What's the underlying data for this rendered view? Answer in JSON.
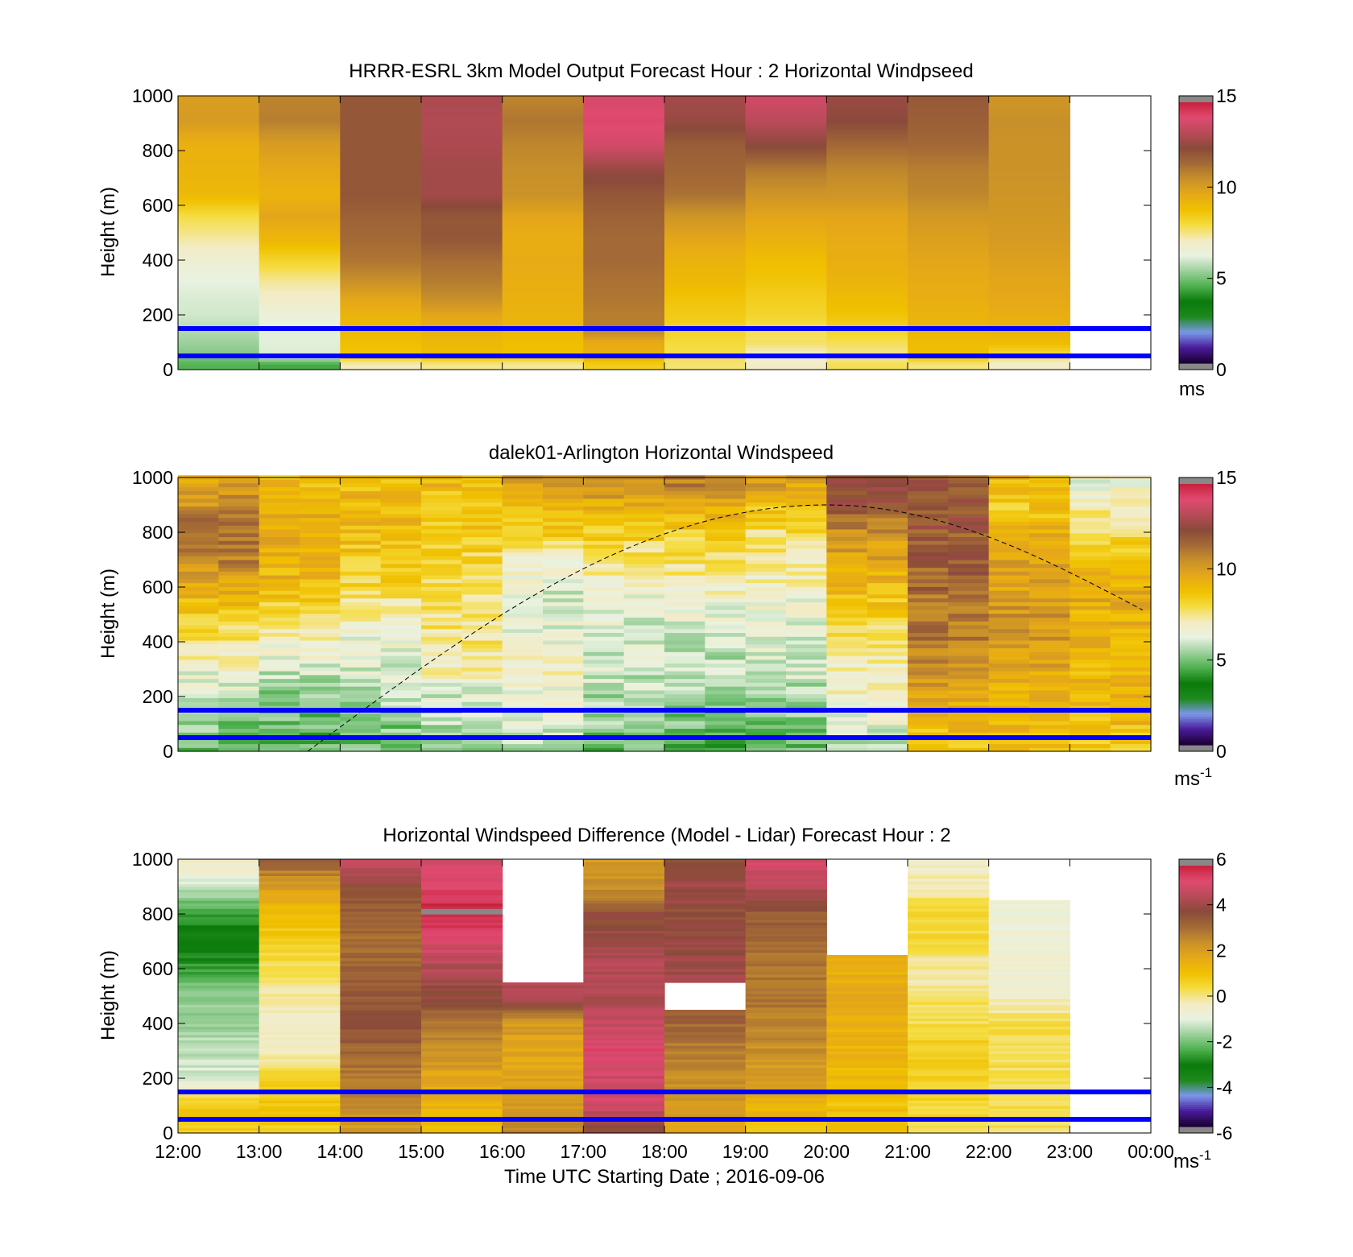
{
  "figure": {
    "xlabel": "Time UTC  Starting Date ; 2016-09-06",
    "x_tick_labels": [
      "12:00",
      "13:00",
      "14:00",
      "15:00",
      "16:00",
      "17:00",
      "18:00",
      "19:00",
      "20:00",
      "21:00",
      "22:00",
      "23:00",
      "00:00"
    ]
  },
  "chart_data": [
    {
      "type": "heatmap",
      "title": "HRRR-ESRL 3km Model Output   Forecast Hour : 2 Horizontal Windpseed",
      "ylabel": "Height (m)",
      "ylim": [
        0,
        1000
      ],
      "y_ticks": [
        "0",
        "200",
        "400",
        "600",
        "800",
        "1000"
      ],
      "x_hours": [
        12,
        13,
        14,
        15,
        16,
        17,
        18,
        19,
        20,
        21,
        22,
        23
      ],
      "heights_m": [
        20,
        50,
        100,
        150,
        200,
        260,
        330,
        400,
        480,
        560,
        640,
        730,
        820,
        910,
        980
      ],
      "values": [
        [
          4.5,
          5.0,
          5.3,
          5.6,
          5.9,
          6.0,
          6.2,
          6.6,
          7.3,
          7.9,
          9.1,
          9.3,
          9.4,
          10.2,
          10.1
        ],
        [
          4.3,
          6.0,
          6.1,
          6.1,
          6.4,
          6.9,
          7.4,
          8.2,
          9.2,
          9.8,
          9.3,
          9.7,
          10.1,
          11.0,
          10.9
        ],
        [
          7.1,
          8.6,
          8.9,
          9.1,
          9.3,
          9.8,
          10.6,
          11.2,
          11.5,
          11.7,
          12.0,
          12.0,
          12.0,
          12.0,
          12.0
        ],
        [
          7.4,
          9.0,
          9.1,
          9.4,
          9.8,
          10.6,
          11.1,
          11.4,
          12.0,
          12.0,
          12.8,
          12.8,
          13.0,
          13.1,
          13.0
        ],
        [
          7.3,
          8.8,
          8.9,
          9.2,
          9.3,
          9.4,
          9.5,
          9.6,
          9.5,
          9.8,
          10.5,
          10.6,
          10.8,
          11.2,
          10.9
        ],
        [
          8.4,
          9.4,
          9.6,
          11.0,
          11.0,
          11.2,
          11.3,
          11.5,
          11.5,
          11.7,
          12.0,
          12.6,
          13.8,
          14.2,
          13.9
        ],
        [
          7.6,
          7.8,
          8.0,
          8.3,
          8.5,
          8.7,
          9.1,
          9.3,
          9.8,
          10.4,
          11.3,
          11.6,
          11.8,
          12.6,
          12.8
        ],
        [
          7.0,
          6.8,
          7.7,
          7.8,
          8.2,
          8.4,
          8.7,
          8.9,
          9.4,
          9.8,
          10.4,
          11.1,
          12.4,
          13.3,
          13.7
        ],
        [
          7.8,
          7.3,
          7.8,
          8.3,
          8.7,
          9.0,
          9.3,
          9.5,
          9.6,
          9.8,
          10.4,
          10.8,
          11.5,
          12.4,
          12.6
        ],
        [
          7.5,
          8.8,
          9.0,
          9.2,
          9.3,
          9.5,
          9.6,
          9.8,
          10.0,
          10.3,
          10.8,
          11.0,
          11.5,
          11.8,
          11.9
        ],
        [
          6.9,
          7.8,
          9.0,
          9.3,
          9.5,
          9.7,
          9.8,
          10.0,
          10.2,
          10.3,
          10.4,
          10.5,
          10.5,
          10.6,
          10.4
        ],
        [
          null,
          null,
          null,
          null,
          null,
          null,
          null,
          null,
          null,
          null,
          null,
          null,
          null,
          null,
          null
        ]
      ],
      "reference_lines_m": [
        150,
        50
      ],
      "colorbar": {
        "range": [
          0,
          15
        ],
        "ticks": [
          "0",
          "5",
          "10",
          "15"
        ],
        "unit": "ms"
      }
    },
    {
      "type": "heatmap",
      "title": "dalek01-Arlington  Horizontal Windspeed",
      "ylabel": "Height (m)",
      "ylim": [
        0,
        1000
      ],
      "y_ticks": [
        "0",
        "200",
        "400",
        "600",
        "800",
        "1000"
      ],
      "x_hours": [
        12,
        13,
        14,
        15,
        16,
        17,
        18,
        19,
        20,
        21,
        22,
        23
      ],
      "heights_m": [
        25,
        100,
        200,
        300,
        400,
        500,
        600,
        700,
        800,
        900,
        980
      ],
      "values": [
        [
          5.0,
          5.0,
          6.0,
          6.5,
          7.5,
          8.5,
          9.5,
          11.0,
          11.5,
          10.5,
          10.0
        ],
        [
          4.5,
          4.8,
          5.2,
          6.0,
          6.8,
          8.0,
          9.0,
          9.5,
          9.8,
          9.5,
          9.0
        ],
        [
          4.8,
          5.0,
          5.5,
          6.0,
          6.5,
          7.0,
          8.0,
          8.5,
          9.0,
          9.2,
          9.0
        ],
        [
          5.0,
          5.5,
          6.0,
          7.0,
          7.5,
          7.5,
          7.8,
          8.0,
          8.5,
          8.5,
          9.0
        ],
        [
          5.5,
          6.0,
          6.5,
          7.0,
          6.5,
          6.0,
          6.2,
          7.0,
          8.5,
          9.0,
          10.0
        ],
        [
          4.8,
          5.2,
          5.5,
          6.0,
          6.0,
          6.2,
          6.8,
          7.5,
          8.5,
          9.5,
          10.5
        ],
        [
          4.5,
          4.8,
          5.3,
          5.6,
          6.0,
          6.3,
          7.0,
          7.7,
          8.5,
          9.5,
          11.0
        ],
        [
          4.6,
          5.0,
          5.4,
          6.0,
          6.2,
          6.4,
          6.8,
          7.2,
          7.8,
          8.8,
          10.0
        ],
        [
          5.8,
          6.2,
          6.8,
          7.0,
          7.5,
          8.5,
          9.0,
          9.8,
          10.5,
          12.0,
          12.5
        ],
        [
          8.5,
          9.2,
          9.8,
          10.5,
          11.0,
          11.2,
          11.5,
          11.8,
          12.0,
          12.2,
          12.0
        ],
        [
          8.8,
          9.0,
          9.3,
          9.8,
          10.2,
          10.4,
          10.0,
          9.8,
          9.5,
          8.5,
          9.0
        ],
        [
          8.6,
          9.0,
          9.0,
          9.2,
          9.3,
          9.4,
          9.6,
          8.6,
          8.0,
          7.0,
          6.5
        ]
      ],
      "dashed_curve": {
        "start_height_m": 0,
        "peak_hour": 20,
        "peak_height_m": 900,
        "end_height_m": 500
      },
      "reference_lines_m": [
        150,
        50
      ],
      "colorbar": {
        "range": [
          0,
          15
        ],
        "ticks": [
          "0",
          "5",
          "10",
          "15"
        ],
        "unit": "ms",
        "unit_superscript": "-1"
      }
    },
    {
      "type": "heatmap",
      "title": "Horizontal Windspeed Difference (Model - Lidar) Forecast Hour : 2",
      "ylabel": "Height (m)",
      "ylim": [
        0,
        1000
      ],
      "y_ticks": [
        "0",
        "200",
        "400",
        "600",
        "800",
        "1000"
      ],
      "x_hours": [
        12,
        13,
        14,
        15,
        16,
        17,
        18,
        19,
        20,
        21,
        22,
        23
      ],
      "heights_m": [
        25,
        100,
        200,
        300,
        400,
        500,
        600,
        700,
        800,
        900,
        980
      ],
      "values": [
        [
          0.8,
          0.9,
          -1.2,
          -1.5,
          -1.8,
          -2.0,
          -2.6,
          -3.5,
          -2.6,
          -1.5,
          -0.5
        ],
        [
          0.8,
          0.9,
          0.5,
          -0.3,
          -0.6,
          -0.2,
          0.3,
          0.6,
          1.2,
          2.0,
          3.2
        ],
        [
          2.2,
          2.5,
          2.8,
          3.3,
          3.7,
          3.6,
          3.3,
          3.2,
          3.4,
          3.9,
          4.8
        ],
        [
          1.2,
          1.4,
          1.8,
          2.5,
          3.0,
          4.0,
          4.5,
          5.2,
          6.0,
          5.4,
          5.0
        ],
        [
          2.6,
          2.2,
          1.8,
          1.8,
          2.2,
          4.5,
          null,
          null,
          null,
          null,
          null
        ],
        [
          4.0,
          5.0,
          5.0,
          5.2,
          4.8,
          4.5,
          4.5,
          4.3,
          3.8,
          2.4,
          2.3
        ],
        [
          2.0,
          2.2,
          2.5,
          2.8,
          3.3,
          null,
          4.2,
          4.0,
          3.8,
          4.2,
          3.8
        ],
        [
          1.0,
          1.5,
          2.0,
          2.4,
          2.8,
          2.9,
          3.0,
          3.2,
          3.5,
          4.5,
          5.0
        ],
        [
          1.2,
          1.0,
          1.2,
          1.4,
          1.5,
          1.7,
          1.6,
          null,
          null,
          null,
          null
        ],
        [
          0.3,
          0.5,
          0.6,
          0.8,
          0.3,
          0.1,
          -0.2,
          0.4,
          0.6,
          -0.3,
          -0.5
        ],
        [
          0.2,
          0.3,
          0.2,
          0.3,
          0.4,
          -0.5,
          -0.7,
          -0.8,
          -0.9,
          null,
          null
        ],
        [
          null,
          null,
          null,
          null,
          null,
          null,
          null,
          null,
          null,
          null,
          null
        ]
      ],
      "reference_lines_m": [
        150,
        50
      ],
      "colorbar": {
        "range": [
          -6,
          6
        ],
        "ticks": [
          "-6",
          "-4",
          "-2",
          "0",
          "2",
          "4",
          "6"
        ],
        "unit": "ms",
        "unit_superscript": "-1"
      }
    }
  ],
  "colormap": {
    "stops": [
      "#1a0030",
      "#4a1a9c",
      "#7a98e8",
      "#1e8a1e",
      "#0a7a0a",
      "#4db04d",
      "#9cd09c",
      "#e9f2e0",
      "#f3ebc4",
      "#f5dc3f",
      "#f0c000",
      "#e6a818",
      "#c8902a",
      "#a46a36",
      "#8a4a3a",
      "#b84a58",
      "#e04a70",
      "#c8203c"
    ],
    "out_of_range": "#888888",
    "reference_line": "#0000ff"
  }
}
